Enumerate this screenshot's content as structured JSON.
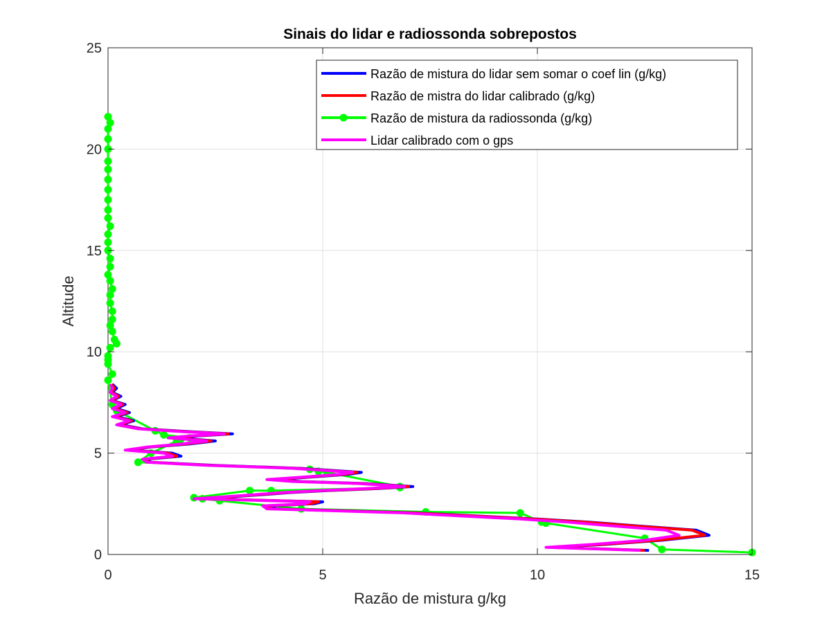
{
  "chart_data": {
    "type": "line",
    "title": "Sinais do lidar e radiossonda sobrepostos",
    "xlabel": "Razão de mistura g/kg",
    "ylabel": "Altitude",
    "xlim": [
      0,
      15
    ],
    "ylim": [
      0,
      25
    ],
    "xticks": [
      0,
      5,
      10,
      15
    ],
    "yticks": [
      0,
      5,
      10,
      15,
      20,
      25
    ],
    "grid": true,
    "legend_position": "top-right",
    "series": [
      {
        "name": "Razão de mistura do lidar sem somar o coef lin (g/kg)",
        "color": "#0000ff",
        "marker": "none",
        "x": [
          12.6,
          10.4,
          11.6,
          12.9,
          14.0,
          13.7,
          12.4,
          11.2,
          10.0,
          8.6,
          7.2,
          5.6,
          3.9,
          3.8,
          4.8,
          5.0,
          2.2,
          2.9,
          3.6,
          4.2,
          5.1,
          6.3,
          7.1,
          6.0,
          4.5,
          3.9,
          4.6,
          5.6,
          5.9,
          4.5,
          2.5,
          1.0,
          0.9,
          1.7,
          1.5,
          0.5,
          1.0,
          1.9,
          2.5,
          1.6,
          2.1,
          2.9,
          2.0,
          0.8,
          0.3,
          0.6,
          0.2,
          0.5,
          0.2,
          0.4,
          0.1,
          0.3,
          0.1,
          0.2,
          0.1
        ],
        "y": [
          0.2,
          0.35,
          0.5,
          0.7,
          0.95,
          1.2,
          1.4,
          1.6,
          1.75,
          1.9,
          2.05,
          2.15,
          2.25,
          2.4,
          2.5,
          2.6,
          2.75,
          2.85,
          2.95,
          3.05,
          3.15,
          3.25,
          3.35,
          3.5,
          3.6,
          3.7,
          3.8,
          3.95,
          4.05,
          4.25,
          4.4,
          4.55,
          4.7,
          4.85,
          5.0,
          5.15,
          5.3,
          5.45,
          5.6,
          5.75,
          5.85,
          5.95,
          6.05,
          6.2,
          6.4,
          6.6,
          6.8,
          7.0,
          7.2,
          7.4,
          7.6,
          7.8,
          8.0,
          8.2,
          8.4
        ]
      },
      {
        "name": "Razão de mistra do lidar calibrado (g/kg)",
        "color": "#ff0000",
        "marker": "none",
        "x": [
          12.5,
          10.3,
          11.5,
          12.8,
          13.9,
          13.6,
          12.3,
          11.1,
          9.9,
          8.5,
          7.1,
          5.5,
          3.8,
          3.7,
          4.7,
          4.9,
          2.1,
          2.8,
          3.5,
          4.1,
          5.0,
          6.2,
          7.0,
          5.9,
          4.4,
          3.8,
          4.5,
          5.5,
          5.8,
          4.4,
          2.4,
          0.95,
          0.85,
          1.6,
          1.4,
          0.45,
          0.95,
          1.8,
          2.4,
          1.5,
          2.0,
          2.8,
          1.9,
          0.75,
          0.25,
          0.55,
          0.15,
          0.45,
          0.15,
          0.35,
          0.08,
          0.25,
          0.08,
          0.15,
          0.08
        ],
        "y": [
          0.2,
          0.35,
          0.5,
          0.7,
          0.95,
          1.2,
          1.4,
          1.6,
          1.75,
          1.9,
          2.05,
          2.15,
          2.25,
          2.4,
          2.5,
          2.6,
          2.75,
          2.85,
          2.95,
          3.05,
          3.15,
          3.25,
          3.35,
          3.5,
          3.6,
          3.7,
          3.8,
          3.95,
          4.05,
          4.25,
          4.4,
          4.55,
          4.7,
          4.85,
          5.0,
          5.15,
          5.3,
          5.45,
          5.6,
          5.75,
          5.85,
          5.95,
          6.05,
          6.2,
          6.4,
          6.6,
          6.8,
          7.0,
          7.2,
          7.4,
          7.6,
          7.8,
          8.0,
          8.2,
          8.4
        ]
      },
      {
        "name": "Razão de mistura da radiossonda (g/kg)",
        "color": "#00ff00",
        "marker": "circle",
        "x": [
          15.0,
          12.9,
          12.5,
          10.2,
          10.1,
          9.6,
          7.4,
          4.5,
          2.6,
          2.2,
          2.0,
          3.3,
          3.8,
          6.8,
          6.8,
          5.1,
          4.9,
          4.7,
          0.7,
          1.0,
          1.6,
          1.7,
          1.9,
          1.3,
          1.1,
          0.2,
          0.1,
          0.0,
          0.1,
          0.0,
          0.0,
          0.0,
          0.05,
          0.2,
          0.15,
          0.1,
          0.05,
          0.1,
          0.1,
          0.05,
          0.05,
          0.1,
          0.05,
          0.0,
          0.05,
          0.05,
          0.0,
          0.0,
          0.0,
          0.05,
          0.0,
          0.0,
          0.0,
          0.0,
          0.0,
          0.0,
          0.0,
          0.0,
          0.0,
          0.0,
          0.05,
          0.0
        ],
        "y": [
          0.1,
          0.25,
          0.8,
          1.55,
          1.6,
          2.05,
          2.1,
          2.25,
          2.65,
          2.75,
          2.8,
          3.15,
          3.15,
          3.3,
          3.35,
          4.05,
          4.1,
          4.2,
          4.55,
          5.0,
          5.6,
          5.7,
          5.75,
          5.9,
          6.1,
          7.1,
          7.4,
          8.6,
          8.9,
          9.4,
          9.6,
          9.8,
          10.2,
          10.4,
          10.6,
          11.0,
          11.3,
          11.6,
          12.0,
          12.4,
          12.8,
          13.1,
          13.5,
          13.8,
          14.2,
          14.6,
          15.0,
          15.4,
          15.8,
          16.2,
          16.6,
          17.0,
          17.5,
          18.0,
          18.5,
          19.0,
          19.4,
          20.0,
          20.5,
          21.0,
          21.3,
          21.6
        ]
      },
      {
        "name": "Lidar calibrado com o gps",
        "color": "#ff00ff",
        "marker": "none",
        "x": [
          12.4,
          10.2,
          11.3,
          12.5,
          13.3,
          13.0,
          11.8,
          10.7,
          9.6,
          8.2,
          6.9,
          5.3,
          3.7,
          3.6,
          4.6,
          4.7,
          2.0,
          2.7,
          3.4,
          4.0,
          4.9,
          6.0,
          6.9,
          5.8,
          4.3,
          3.7,
          4.4,
          5.4,
          5.7,
          4.3,
          2.3,
          0.9,
          0.8,
          1.5,
          1.3,
          0.4,
          0.9,
          1.7,
          2.3,
          1.4,
          1.9,
          2.7,
          1.8,
          0.7,
          0.2,
          0.5,
          0.1,
          0.4,
          0.1,
          0.3,
          0.05,
          0.2,
          0.05,
          0.1,
          0.05
        ],
        "y": [
          0.2,
          0.35,
          0.5,
          0.7,
          0.95,
          1.2,
          1.4,
          1.6,
          1.75,
          1.9,
          2.05,
          2.15,
          2.25,
          2.4,
          2.5,
          2.6,
          2.75,
          2.85,
          2.95,
          3.05,
          3.15,
          3.25,
          3.35,
          3.5,
          3.6,
          3.7,
          3.8,
          3.95,
          4.05,
          4.25,
          4.4,
          4.55,
          4.7,
          4.85,
          5.0,
          5.15,
          5.3,
          5.45,
          5.6,
          5.75,
          5.85,
          5.95,
          6.05,
          6.2,
          6.4,
          6.6,
          6.8,
          7.0,
          7.2,
          7.4,
          7.6,
          7.8,
          8.0,
          8.2,
          8.4
        ]
      }
    ]
  }
}
